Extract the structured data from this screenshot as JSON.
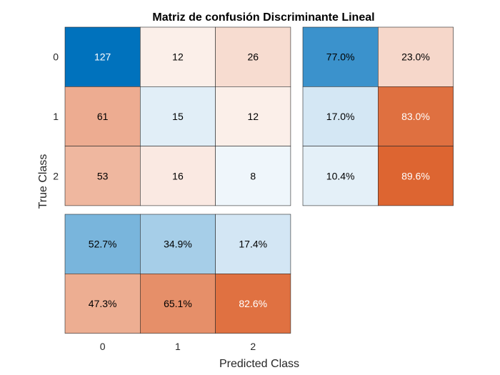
{
  "chart_data": {
    "type": "heatmap",
    "title": "Matriz de confusión Discriminante Lineal",
    "xlabel": "Predicted Class",
    "ylabel": "True Class",
    "class_labels": [
      "0",
      "1",
      "2"
    ],
    "matrix": [
      [
        127,
        12,
        26
      ],
      [
        61,
        15,
        12
      ],
      [
        53,
        16,
        8
      ]
    ],
    "row_summary": {
      "values": [
        [
          "77.0%",
          "23.0%"
        ],
        [
          "17.0%",
          "83.0%"
        ],
        [
          "10.4%",
          "89.6%"
        ]
      ],
      "fractions": [
        [
          0.77,
          0.23
        ],
        [
          0.17,
          0.83
        ],
        [
          0.104,
          0.896
        ]
      ]
    },
    "column_summary": {
      "values": [
        [
          "52.7%",
          "34.9%",
          "17.4%"
        ],
        [
          "47.3%",
          "65.1%",
          "82.6%"
        ]
      ],
      "fractions": [
        [
          0.527,
          0.349,
          0.174
        ],
        [
          0.473,
          0.651,
          0.826
        ]
      ]
    },
    "colors": {
      "correct": "#0072BD",
      "incorrect": "#D95319",
      "base": "#FFFFFF",
      "text_dark": "#000000",
      "text_light": "#FFFFFF"
    }
  }
}
